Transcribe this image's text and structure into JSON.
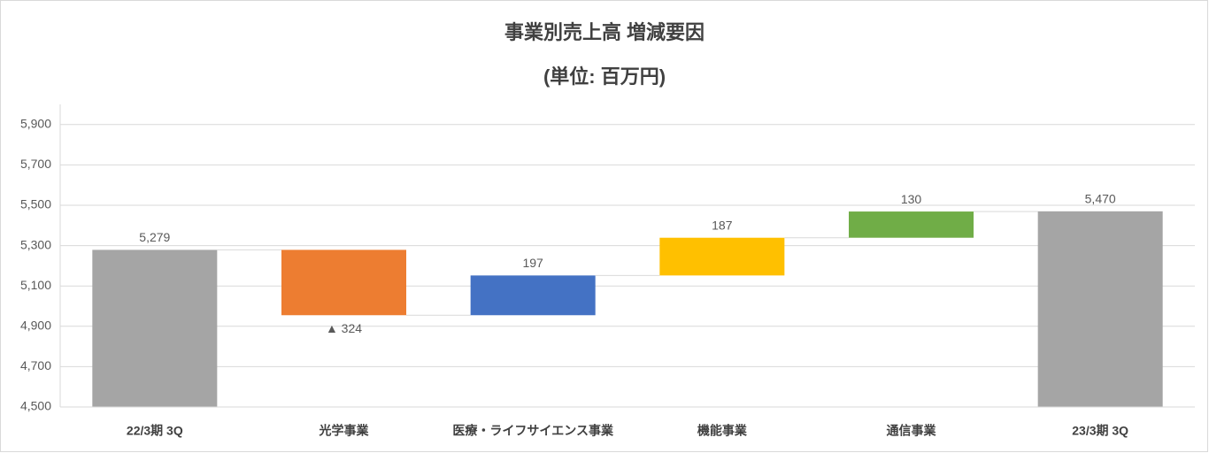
{
  "chart_data": {
    "type": "waterfall",
    "title": "事業別売上高 増減要因",
    "subtitle": "(単位: 百万円)",
    "categories": [
      "22/3期 3Q",
      "光学事業",
      "医療・ライフサイエンス事業",
      "機能事業",
      "通信事業",
      "23/3期 3Q"
    ],
    "values": [
      5279,
      -324,
      197,
      187,
      130,
      5470
    ],
    "value_labels": [
      "5,279",
      "▲ 324",
      "197",
      "187",
      "130",
      "5,470"
    ],
    "colors": [
      "#a5a5a5",
      "#ed7d31",
      "#4472c4",
      "#ffc000",
      "#70ad47",
      "#a5a5a5"
    ],
    "ylim": [
      4500,
      6000
    ],
    "yticks": [
      {
        "value": 4500,
        "label": "4,500"
      },
      {
        "value": 4700,
        "label": "4,700"
      },
      {
        "value": 4900,
        "label": "4,900"
      },
      {
        "value": 5100,
        "label": "5,100"
      },
      {
        "value": 5300,
        "label": "5,300"
      },
      {
        "value": 5500,
        "label": "5,500"
      },
      {
        "value": 5700,
        "label": "5,700"
      },
      {
        "value": 5900,
        "label": "5,900"
      }
    ],
    "grid": true
  }
}
